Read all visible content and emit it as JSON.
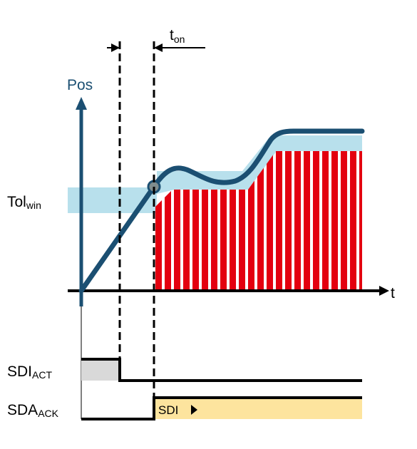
{
  "labels": {
    "pos_axis": "Pos",
    "time_axis": "t",
    "ton_main": "t",
    "ton_sub": "on",
    "tolwin_main": "Tol",
    "tolwin_sub": "win",
    "sdi_act_main": "SDI",
    "sdi_act_sub": "ACT",
    "sda_ack_main": "SDA",
    "sda_ack_sub": "ACK",
    "sdi_box": "SDI"
  },
  "colors": {
    "position_curve": "#1b4f72",
    "axis": "#000000",
    "tolerance_band": "#b8e0ec",
    "monitoring_stripes": "#e3000f",
    "signal_line": "#000000",
    "sdi_act_fill": "#d9d9d9",
    "sdi_box_fill": "#fde49e",
    "marker_fill": "#7f8c8d"
  },
  "icons": {
    "sdi_box_arrow": "triangle-right-icon",
    "monitor_start_marker": "circle-marker-icon"
  }
}
